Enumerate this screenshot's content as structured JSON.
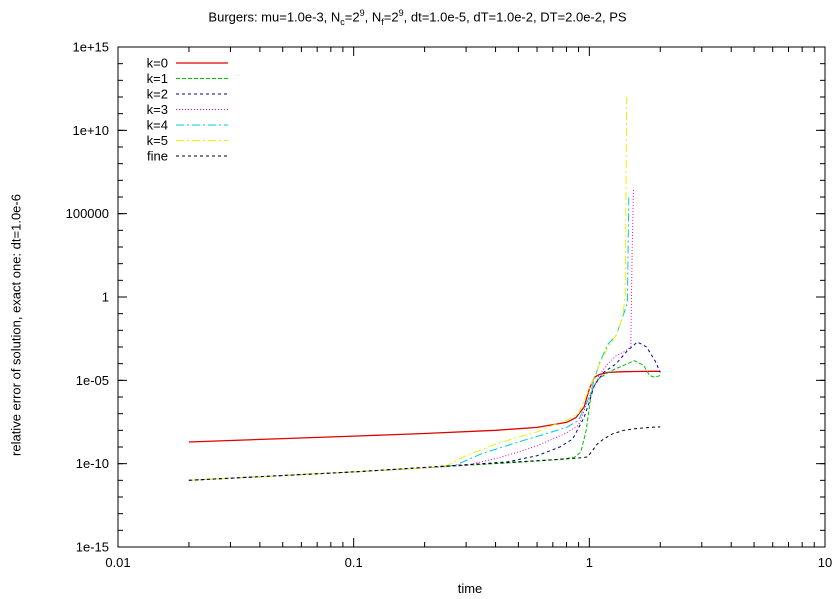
{
  "title_parts": {
    "part1": "Burgers: mu=1.0e-3, N",
    "sub1": "c",
    "part2": "=2",
    "sup1": "9",
    "part3": ", N",
    "sub2": "f",
    "part4": "=2",
    "sup2": "9",
    "part5": ", dt=1.0e-5, dT=1.0e-2, DT=2.0e-2, PS"
  },
  "chart_data": {
    "type": "line",
    "title": "Burgers: mu=1.0e-3, N_c=2^9, N_f=2^9, dt=1.0e-5, dT=1.0e-2, DT=2.0e-2, PS",
    "xlabel": "time",
    "ylabel": "relative error of solution, exact one: dt=1.0e-6",
    "xscale": "log",
    "yscale": "log",
    "xlim": [
      0.01,
      10
    ],
    "ylim": [
      1e-15,
      1000000000000000.0
    ],
    "xticks": [
      0.01,
      0.1,
      1,
      10
    ],
    "xtick_labels": [
      "0.01",
      "0.1",
      "1",
      "10"
    ],
    "yticks": [
      1e-15,
      1e-10,
      1e-05,
      1,
      100000,
      10000000000.0,
      1000000000000000.0
    ],
    "ytick_labels": [
      "1e-15",
      "1e-10",
      "1e-05",
      "1",
      "100000",
      "1e+10",
      "1e+15"
    ],
    "grid": false,
    "legend_position": "top-left",
    "series": [
      {
        "name": "k=0",
        "color": "#e00000",
        "dash": "",
        "width": 1.3,
        "x": [
          0.02,
          0.05,
          0.1,
          0.2,
          0.4,
          0.6,
          0.8,
          0.88,
          0.95,
          1.0,
          1.05,
          1.1,
          1.2,
          1.4,
          1.6,
          1.8,
          2.0
        ],
        "y": [
          2e-09,
          3.2e-09,
          4.5e-09,
          6.5e-09,
          1e-08,
          1.5e-08,
          3e-08,
          6e-08,
          2.5e-07,
          3e-06,
          1.5e-05,
          2.2e-05,
          3e-05,
          3.3e-05,
          3.4e-05,
          3.5e-05,
          3.5e-05
        ]
      },
      {
        "name": "k=1",
        "color": "#00c000",
        "dash": "4,2",
        "width": 1,
        "x": [
          0.02,
          0.1,
          0.3,
          0.5,
          0.7,
          0.8,
          0.87,
          0.92,
          0.97,
          1.02,
          1.08,
          1.15,
          1.25,
          1.4,
          1.55,
          1.7,
          1.8,
          1.9,
          2.0
        ],
        "y": [
          1e-11,
          3.2e-11,
          8e-11,
          1.2e-10,
          1.7e-10,
          2e-10,
          2.5e-10,
          5e-10,
          1e-08,
          2e-06,
          1e-05,
          2e-05,
          4e-05,
          8e-05,
          0.00015,
          8e-05,
          2e-05,
          1.5e-05,
          2e-05
        ]
      },
      {
        "name": "k=2",
        "color": "#00008b",
        "dash": "3,3",
        "width": 1,
        "x": [
          0.02,
          0.1,
          0.3,
          0.45,
          0.6,
          0.75,
          0.85,
          0.95,
          1.0,
          1.05,
          1.15,
          1.3,
          1.45,
          1.6,
          1.75,
          1.9,
          2.0
        ],
        "y": [
          1e-11,
          3.2e-11,
          8.5e-11,
          1.3e-10,
          3e-10,
          1e-09,
          3e-09,
          6e-08,
          5e-07,
          5e-06,
          3e-05,
          0.0001,
          0.0006,
          0.002,
          0.001,
          0.00015,
          3e-05
        ]
      },
      {
        "name": "k=3",
        "color": "#e000e0",
        "dash": "1,2",
        "width": 1,
        "x": [
          0.02,
          0.1,
          0.2,
          0.3,
          0.4,
          0.5,
          0.6,
          0.7,
          0.8,
          0.9,
          1.0,
          1.1,
          1.2,
          1.3,
          1.4,
          1.5,
          1.52,
          1.54
        ],
        "y": [
          1e-11,
          3.2e-11,
          5.5e-11,
          8e-11,
          2e-10,
          5e-10,
          1.2e-09,
          3e-09,
          7e-09,
          2e-08,
          1e-06,
          2e-05,
          0.0001,
          0.0003,
          0.0005,
          0.001,
          1000.0,
          3000000.0
        ]
      },
      {
        "name": "k=4",
        "color": "#00c8e8",
        "dash": "8,3,2,3",
        "width": 1,
        "x": [
          0.02,
          0.1,
          0.2,
          0.27,
          0.35,
          0.5,
          0.65,
          0.8,
          0.9,
          1.0,
          1.1,
          1.2,
          1.3,
          1.4,
          1.45,
          1.47
        ],
        "y": [
          1e-11,
          3.2e-11,
          5.5e-11,
          8e-11,
          4e-10,
          2e-09,
          6e-09,
          1.5e-08,
          4e-08,
          1e-06,
          0.0001,
          0.0015,
          0.005,
          0.1,
          0.5,
          1000000.0
        ]
      },
      {
        "name": "k=5",
        "color": "#f0f000",
        "dash": "8,3,2,3",
        "width": 1,
        "x": [
          0.02,
          0.1,
          0.2,
          0.25,
          0.3,
          0.4,
          0.5,
          0.6,
          0.7,
          0.8,
          0.9,
          1.0,
          1.1,
          1.2,
          1.3,
          1.38,
          1.42,
          1.44
        ],
        "y": [
          1e-11,
          3.2e-11,
          5.5e-11,
          8e-11,
          3e-10,
          1.5e-09,
          4e-09,
          8e-09,
          2e-08,
          4e-08,
          1e-07,
          3e-06,
          8e-05,
          0.001,
          0.005,
          0.05,
          1.0,
          1000000000000.0
        ]
      },
      {
        "name": "fine",
        "color": "#000000",
        "dash": "3,3",
        "width": 1,
        "x": [
          0.02,
          0.1,
          0.3,
          0.5,
          0.7,
          0.9,
          0.98,
          1.02,
          1.08,
          1.15,
          1.25,
          1.4,
          1.6,
          1.8,
          2.0
        ],
        "y": [
          1e-11,
          3.2e-11,
          8.5e-11,
          1.3e-10,
          1.7e-10,
          2.2e-10,
          2.5e-10,
          5e-10,
          1.5e-09,
          3e-09,
          6e-09,
          1e-08,
          1.3e-08,
          1.5e-08,
          1.6e-08
        ]
      }
    ]
  }
}
